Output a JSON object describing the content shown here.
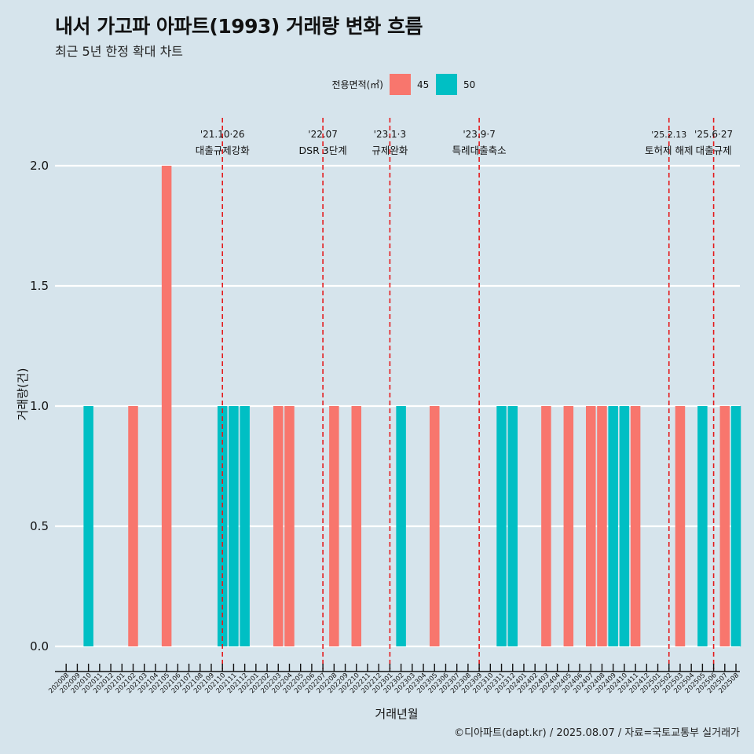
{
  "chart_data": {
    "type": "bar",
    "title": "내서 가고파 아파트(1993) 거래량 변화 흐름",
    "subtitle": "최근 5년 한정 확대 차트",
    "xlabel": "거래년월",
    "ylabel": "거래량(건)",
    "caption": "©디아파트(dapt.kr) / 2025.08.07 / 자료=국토교통부 실거래가",
    "legend_title": "전용면적(㎡)",
    "legend_position": "top",
    "grid": true,
    "ylim": [
      0,
      2
    ],
    "yticks": [
      "0.0",
      "0.5",
      "1.0",
      "1.5",
      "2.0"
    ],
    "categories": [
      "202008",
      "202009",
      "202010",
      "202011",
      "202012",
      "202101",
      "202102",
      "202103",
      "202104",
      "202105",
      "202106",
      "202107",
      "202108",
      "202109",
      "202110",
      "202111",
      "202112",
      "202201",
      "202202",
      "202203",
      "202204",
      "202205",
      "202206",
      "202207",
      "202208",
      "202209",
      "202210",
      "202211",
      "202212",
      "202301",
      "202302",
      "202303",
      "202304",
      "202305",
      "202306",
      "202307",
      "202308",
      "202309",
      "202310",
      "202311",
      "202312",
      "202401",
      "202402",
      "202403",
      "202404",
      "202405",
      "202406",
      "202407",
      "202408",
      "202409",
      "202410",
      "202411",
      "202412",
      "202501",
      "202502",
      "202503",
      "202504",
      "202505",
      "202506",
      "202507",
      "202508"
    ],
    "series": [
      {
        "name": "45",
        "color": "#f8766d",
        "values": [
          0,
          0,
          0,
          0,
          0,
          0,
          1,
          0,
          0,
          2,
          0,
          0,
          0,
          0,
          0,
          0,
          0,
          0,
          0,
          1,
          1,
          0,
          0,
          0,
          1,
          0,
          1,
          0,
          0,
          0,
          0,
          0,
          0,
          1,
          0,
          0,
          0,
          0,
          0,
          0,
          0,
          0,
          0,
          1,
          0,
          1,
          0,
          1,
          1,
          0,
          0,
          1,
          0,
          0,
          0,
          1,
          0,
          0,
          0,
          1,
          0
        ]
      },
      {
        "name": "50",
        "color": "#00bfc4",
        "values": [
          0,
          0,
          1,
          0,
          0,
          0,
          0,
          0,
          0,
          0,
          0,
          0,
          0,
          0,
          1,
          1,
          1,
          0,
          0,
          0,
          0,
          0,
          0,
          0,
          0,
          0,
          0,
          0,
          0,
          0,
          1,
          0,
          0,
          0,
          0,
          0,
          0,
          0,
          0,
          1,
          1,
          0,
          0,
          0,
          0,
          0,
          0,
          0,
          0,
          1,
          1,
          0,
          0,
          0,
          0,
          0,
          0,
          1,
          0,
          0,
          1
        ]
      }
    ],
    "annotations": [
      {
        "x": "202110",
        "date": "'21.10·26",
        "label": "대출규제강화"
      },
      {
        "x": "202207",
        "date": "'22.07",
        "label": "DSR 3단계"
      },
      {
        "x": "202301",
        "date": "'23.1·3",
        "label": "규제완화"
      },
      {
        "x": "202309",
        "date": "'23.9·7",
        "label": "특례대출축소"
      },
      {
        "x": "202502",
        "date": "'25.2.13",
        "label": "토허제 해제"
      },
      {
        "x": "202506",
        "date": "'25.6·27",
        "label": "대출규제"
      }
    ]
  }
}
